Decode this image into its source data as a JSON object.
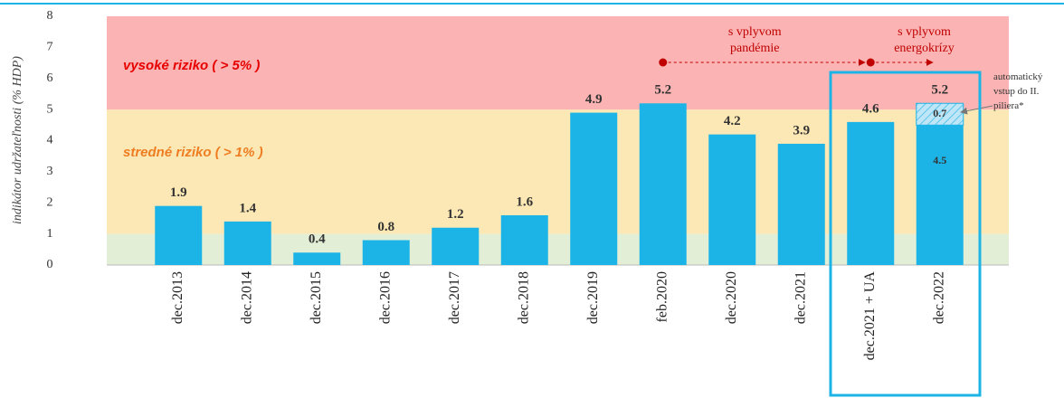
{
  "chart_data": {
    "type": "stacked_bar",
    "y_axis_label": "indikátor udržateľnosti (% HDP)",
    "categories": [
      "dec.2013",
      "dec.2014",
      "dec.2015",
      "dec.2016",
      "dec.2017",
      "dec.2018",
      "dec.2019",
      "feb.2020",
      "dec.2020",
      "dec.2021",
      "dec.2021 + UA",
      "dec.2022"
    ],
    "series": [
      {
        "color": "#1cb4e6",
        "values": [
          1.9,
          1.4,
          0.4,
          0.8,
          1.2,
          1.6,
          4.9,
          5.2,
          4.2,
          3.9,
          4.6,
          4.5
        ]
      },
      {
        "name": "automatický vstup do II. piliera*",
        "color": "#bfe6f6",
        "hatch": true,
        "values": [
          null,
          null,
          null,
          null,
          null,
          null,
          null,
          null,
          null,
          null,
          null,
          0.7
        ]
      }
    ],
    "total_labels": [
      null,
      null,
      null,
      null,
      null,
      null,
      null,
      null,
      null,
      null,
      null,
      "5.2"
    ],
    "zones": [
      {
        "from": 0,
        "to": 1,
        "color": "#e2efd6"
      },
      {
        "from": 1,
        "to": 5,
        "color": "#fbe8b4",
        "label": "stredné riziko ( > 1% )",
        "label_color": "#ee7d22"
      },
      {
        "from": 5,
        "to": 8,
        "color": "#fbb3b3",
        "label": "vysoké riziko ( > 5% )",
        "label_color": "#e60000"
      }
    ],
    "annotations": [
      "s vplyvom pandémie",
      "s vplyvom energokrízy"
    ],
    "ylim": [
      0,
      8
    ],
    "yticks": [
      0,
      1,
      2,
      3,
      4,
      5,
      6,
      7,
      8
    ]
  }
}
